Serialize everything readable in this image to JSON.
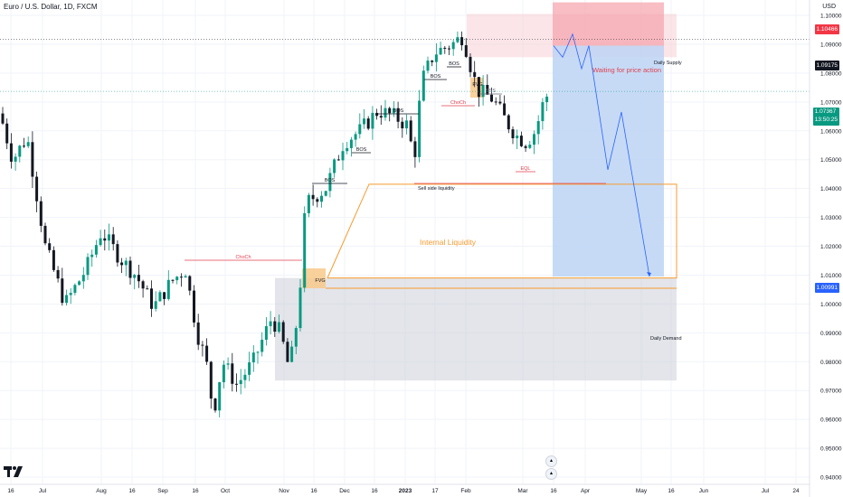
{
  "header": {
    "symbol_title": "Euro / U.S. Dollar, 1D, FXCM",
    "currency": "USD"
  },
  "colors": {
    "bull": "#089981",
    "bear": "#131722",
    "supply_zone": "#f7c5cb",
    "demand_zone": "#d1d4dc",
    "short_position_target": "#bcd3f5",
    "short_position_stop": "#f5a3ab",
    "internal_liquidity": "#f89a2f",
    "choch_line": "#e0424f",
    "projection_path": "#2962ff"
  },
  "chart_data": {
    "type": "candlestick",
    "y_axis": {
      "ticks": [
        "0.94000",
        "0.95000",
        "0.96000",
        "0.97000",
        "0.98000",
        "0.99000",
        "1.00000",
        "1.01000",
        "1.02000",
        "1.03000",
        "1.04000",
        "1.05000",
        "1.06000",
        "1.07000",
        "1.08000",
        "1.09000",
        "1.10000"
      ],
      "range": [
        0.938,
        1.113
      ]
    },
    "x_axis": {
      "ticks": [
        "16",
        "Jul",
        "Aug",
        "16",
        "Sep",
        "16",
        "Oct",
        "Nov",
        "16",
        "Dec",
        "16",
        "2023",
        "17",
        "Feb",
        "Mar",
        "16",
        "Apr",
        "May",
        "16",
        "Jun",
        "Jul",
        "24"
      ]
    },
    "price_labels": {
      "stop": "1.10466",
      "entry": "1.09175",
      "last_price": "1.07367",
      "countdown": "13:50:25",
      "target": "1.00991"
    },
    "annotations": {
      "bos": "BOS",
      "choch": "ChoCh",
      "fvg": "FVG",
      "sss": "SSS",
      "eql": "EQL",
      "sell_side_liquidity": "Sell side liquidity",
      "internal_liquidity": "Internal Liquidity",
      "daily_supply": "Daily Supply",
      "daily_demand": "Daily Demand",
      "waiting": "Waiting for price action"
    },
    "zones": {
      "daily_supply": [
        1.0855,
        1.1005
      ],
      "daily_demand": [
        0.9735,
        1.009
      ],
      "short_target": [
        1.0095,
        1.0895
      ],
      "short_stop": [
        1.0895,
        1.1045
      ],
      "internal_liquidity": [
        1.009,
        1.0415
      ]
    },
    "projection": [
      1.0895,
      1.0855,
      1.0935,
      1.0815,
      1.0895,
      1.0465,
      1.0665,
      1.0095
    ]
  }
}
